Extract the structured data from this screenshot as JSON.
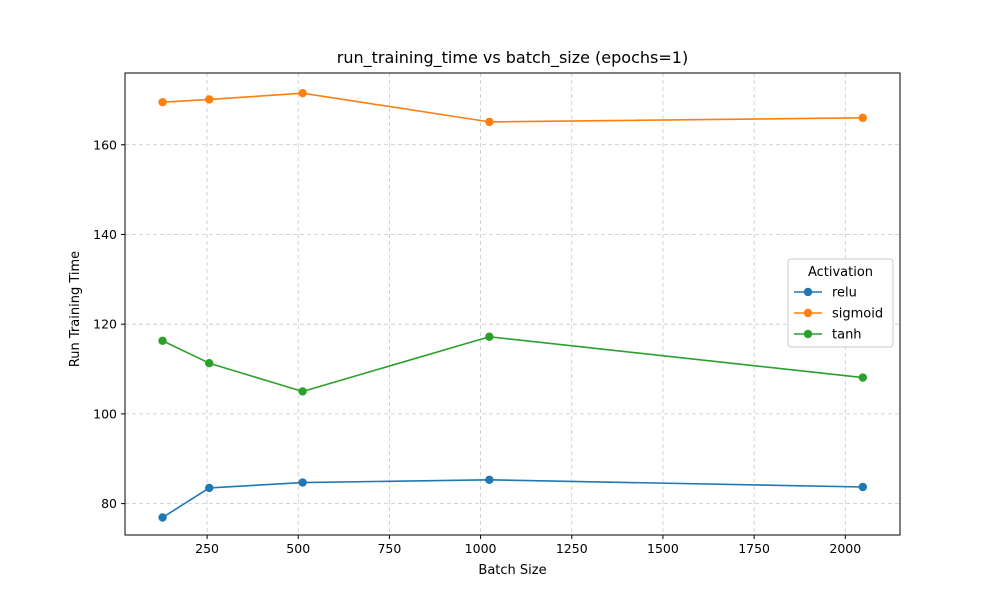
{
  "chart_data": {
    "type": "line",
    "title": "run_training_time vs batch_size (epochs=1)",
    "xlabel": "Batch Size",
    "ylabel": "Run Training Time",
    "xlim": [
      25,
      2150
    ],
    "ylim": [
      73,
      176
    ],
    "xticks": [
      250,
      500,
      750,
      1000,
      1250,
      1500,
      1750,
      2000
    ],
    "yticks": [
      80,
      100,
      120,
      140,
      160
    ],
    "grid": true,
    "legend": {
      "title": "Activation",
      "placement": "center-right"
    },
    "series": [
      {
        "name": "relu",
        "color": "#1f77b4",
        "x": [
          128,
          256,
          512,
          1024,
          2048
        ],
        "y": [
          76.9,
          83.5,
          84.7,
          85.3,
          83.7
        ]
      },
      {
        "name": "sigmoid",
        "color": "#ff7f0e",
        "x": [
          128,
          256,
          512,
          1024,
          2048
        ],
        "y": [
          169.5,
          170.1,
          171.5,
          165.1,
          166.0
        ]
      },
      {
        "name": "tanh",
        "color": "#2ca02c",
        "x": [
          128,
          256,
          512,
          1024,
          2048
        ],
        "y": [
          116.3,
          111.3,
          105.0,
          117.2,
          108.1
        ]
      }
    ]
  }
}
